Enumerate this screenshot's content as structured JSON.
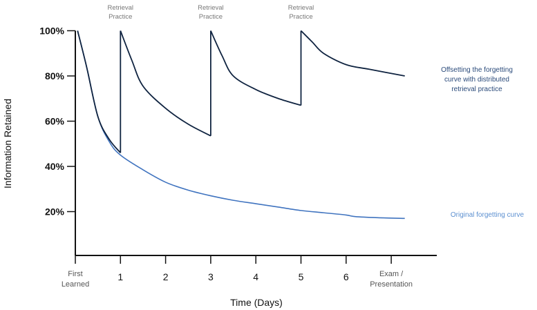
{
  "chart_data": {
    "type": "line",
    "title": "",
    "xlabel": "Time (Days)",
    "ylabel": "Information Retained",
    "xlim": [
      0,
      8
    ],
    "ylim": [
      0,
      100
    ],
    "grid": false,
    "y_ticks": [
      {
        "value": 100,
        "label": "100%"
      },
      {
        "value": 80,
        "label": "80%"
      },
      {
        "value": 60,
        "label": "60%"
      },
      {
        "value": 40,
        "label": "40%"
      },
      {
        "value": 20,
        "label": "20%"
      }
    ],
    "x_ticks": [
      {
        "value": 0,
        "label": [
          "First",
          "Learned"
        ]
      },
      {
        "value": 1,
        "label": [
          "1"
        ]
      },
      {
        "value": 2,
        "label": [
          "2"
        ]
      },
      {
        "value": 3,
        "label": [
          "3"
        ]
      },
      {
        "value": 4,
        "label": [
          "4"
        ]
      },
      {
        "value": 5,
        "label": [
          "5"
        ]
      },
      {
        "value": 6,
        "label": [
          "6"
        ]
      },
      {
        "value": 7,
        "label": [
          "Exam /",
          "Presentation"
        ]
      }
    ],
    "annotations": [
      {
        "x": 1,
        "text": [
          "Retrieval",
          "Practice"
        ]
      },
      {
        "x": 3,
        "text": [
          "Retrieval",
          "Practice"
        ]
      },
      {
        "x": 5,
        "text": [
          "Retrieval",
          "Practice"
        ]
      }
    ],
    "series": [
      {
        "name": "Original forgetting curve",
        "color": "#3f73bf",
        "label_color": "#5b8fd0",
        "label_lines": [
          "Original forgetting curve"
        ],
        "segments": [
          [
            [
              0.05,
              100
            ],
            [
              0.25,
              84
            ],
            [
              0.5,
              62
            ],
            [
              0.75,
              51
            ],
            [
              1,
              45
            ],
            [
              1.5,
              38.5
            ],
            [
              2,
              33
            ],
            [
              2.5,
              29.5
            ],
            [
              3,
              27
            ],
            [
              3.5,
              25
            ],
            [
              4,
              23.5
            ],
            [
              4.5,
              22
            ],
            [
              5,
              20.5
            ],
            [
              5.5,
              19.5
            ],
            [
              6,
              18.5
            ],
            [
              6.2,
              17.8
            ],
            [
              6.7,
              17.3
            ],
            [
              7.3,
              17
            ]
          ]
        ]
      },
      {
        "name": "Offsetting the forgetting curve with distributed retrieval practice",
        "color": "#0f2340",
        "label_color": "#2a4a7a",
        "label_lines": [
          "Offsetting the forgetting",
          "curve with distributed",
          "retrieval practice"
        ],
        "segments": [
          [
            [
              0.05,
              100
            ],
            [
              0.25,
              84
            ],
            [
              0.5,
              62
            ],
            [
              0.75,
              52
            ],
            [
              1,
              46
            ]
          ],
          [
            [
              1,
              46
            ],
            [
              1,
              100
            ]
          ],
          [
            [
              1,
              100
            ],
            [
              1.25,
              87
            ],
            [
              1.5,
              75.5
            ],
            [
              2,
              65.7
            ],
            [
              2.5,
              58.7
            ],
            [
              3,
              53.5
            ]
          ],
          [
            [
              3,
              53.5
            ],
            [
              3,
              100
            ]
          ],
          [
            [
              3,
              100
            ],
            [
              3.25,
              89
            ],
            [
              3.5,
              80
            ],
            [
              4,
              74
            ],
            [
              4.5,
              70
            ],
            [
              5,
              67
            ]
          ],
          [
            [
              5,
              67
            ],
            [
              5,
              100
            ]
          ],
          [
            [
              5,
              100
            ],
            [
              5.25,
              95
            ],
            [
              5.5,
              90
            ],
            [
              6,
              85
            ],
            [
              6.5,
              83
            ],
            [
              7.3,
              80
            ]
          ]
        ]
      }
    ]
  }
}
